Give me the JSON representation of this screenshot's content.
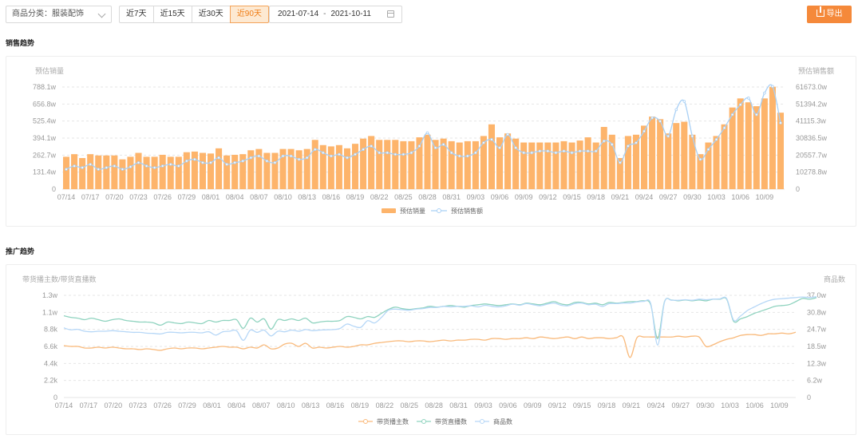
{
  "toolbar": {
    "category_select": "商品分类：服装配饰",
    "ranges": [
      {
        "label": "近7天",
        "active": false
      },
      {
        "label": "近15天",
        "active": false
      },
      {
        "label": "近30天",
        "active": false
      },
      {
        "label": "近90天",
        "active": true
      }
    ],
    "date_start": "2021-07-14",
    "date_sep": "-",
    "date_end": "2021-10-11",
    "export_label": "导出"
  },
  "sales_section": {
    "title": "销售趋势"
  },
  "promo_section": {
    "title": "推广趋势"
  },
  "colors": {
    "accent": "#f5893a",
    "bar": "#fdb46b",
    "sales_line": "#a9d0f5",
    "anchor_line": "#f9b97a",
    "live_line": "#8fd3bf",
    "product_line": "#b6d7f7",
    "grid": "#e6e6e6",
    "axis_text": "#999999"
  },
  "chart_data": [
    {
      "type": "bar",
      "title": "",
      "ylabel": "预估销量",
      "y2label": "预估销售额",
      "ylim": [
        0,
        788.1
      ],
      "y_ticks": [
        "0",
        "131.4w",
        "262.7w",
        "394.1w",
        "525.4w",
        "656.8w",
        "788.1w"
      ],
      "y2lim": [
        0,
        61673
      ],
      "y2_ticks": [
        "0",
        "10278.8w",
        "20557.7w",
        "30836.5w",
        "41115.3w",
        "51394.2w",
        "61673.0w"
      ],
      "x_tick_labels": [
        "07/14",
        "07/17",
        "07/20",
        "07/23",
        "07/26",
        "07/29",
        "08/01",
        "08/04",
        "08/07",
        "08/10",
        "08/13",
        "08/16",
        "08/19",
        "08/22",
        "08/25",
        "08/28",
        "08/31",
        "09/03",
        "09/06",
        "09/09",
        "09/12",
        "09/15",
        "09/18",
        "09/21",
        "09/24",
        "09/27",
        "09/30",
        "10/03",
        "10/06",
        "10/09"
      ],
      "legend_position": "bottom",
      "grid": true,
      "series": [
        {
          "name": "预估销量",
          "type": "bar",
          "axis": "left",
          "values": [
            250,
            270,
            240,
            270,
            260,
            260,
            260,
            230,
            250,
            280,
            250,
            250,
            265,
            250,
            250,
            285,
            290,
            280,
            275,
            315,
            260,
            265,
            270,
            300,
            310,
            280,
            280,
            310,
            310,
            300,
            310,
            380,
            340,
            330,
            340,
            315,
            350,
            390,
            410,
            380,
            380,
            380,
            370,
            370,
            400,
            420,
            380,
            390,
            370,
            360,
            370,
            370,
            410,
            500,
            400,
            430,
            390,
            360,
            360,
            360,
            360,
            360,
            370,
            360,
            375,
            400,
            360,
            480,
            420,
            240,
            410,
            420,
            490,
            560,
            540,
            430,
            510,
            520,
            420,
            270,
            360,
            410,
            500,
            630,
            700,
            670,
            640,
            700,
            790,
            590
          ]
        },
        {
          "name": "预估销售额",
          "type": "line",
          "axis": "right",
          "values": [
            12000,
            14000,
            13000,
            15000,
            12000,
            13000,
            14000,
            12000,
            13500,
            16000,
            14000,
            13000,
            14000,
            15000,
            14000,
            17000,
            18000,
            16000,
            16000,
            19000,
            15000,
            16000,
            17000,
            19000,
            20000,
            17000,
            16000,
            20000,
            20000,
            18000,
            19000,
            24000,
            22000,
            20000,
            21000,
            19000,
            21000,
            24000,
            26000,
            22000,
            22000,
            21000,
            21000,
            22000,
            26000,
            34000,
            25000,
            27000,
            22000,
            20000,
            20000,
            22000,
            28000,
            30000,
            25000,
            33000,
            25000,
            22000,
            22000,
            23000,
            23000,
            22000,
            23000,
            22000,
            23000,
            23000,
            23000,
            29000,
            27000,
            16000,
            26000,
            28000,
            35000,
            43000,
            41000,
            32000,
            48000,
            53000,
            32000,
            18000,
            24000,
            30000,
            37000,
            45000,
            51000,
            55000,
            45000,
            58000,
            62000,
            40000
          ]
        }
      ]
    },
    {
      "type": "line",
      "title": "",
      "ylabel": "带货播主数/带货直播数",
      "y2label": "商品数",
      "ylim": [
        0,
        13000
      ],
      "y_ticks": [
        "0",
        "2.2k",
        "4.4k",
        "6.6k",
        "8.8k",
        "1.1w",
        "1.3w"
      ],
      "y2lim": [
        0,
        370000
      ],
      "y2_ticks": [
        "0",
        "6.2w",
        "12.3w",
        "18.5w",
        "24.7w",
        "30.8w",
        "37.0w"
      ],
      "x_tick_labels": [
        "07/14",
        "07/17",
        "07/20",
        "07/23",
        "07/26",
        "07/29",
        "08/01",
        "08/04",
        "08/07",
        "08/10",
        "08/13",
        "08/16",
        "08/19",
        "08/22",
        "08/25",
        "08/28",
        "08/31",
        "09/03",
        "09/06",
        "09/09",
        "09/12",
        "09/15",
        "09/18",
        "09/21",
        "09/24",
        "09/27",
        "09/30",
        "10/03",
        "10/06",
        "10/09"
      ],
      "legend_position": "bottom",
      "grid": true,
      "series": [
        {
          "name": "带货播主数",
          "axis": "left",
          "values": [
            6600,
            6500,
            6500,
            6300,
            6300,
            6400,
            6300,
            6400,
            6300,
            6200,
            6200,
            6100,
            6200,
            6100,
            6000,
            6200,
            6300,
            6200,
            6300,
            6300,
            6200,
            6300,
            6400,
            6500,
            6400,
            6400,
            6200,
            6400,
            6300,
            6700,
            6200,
            6300,
            6800,
            6900,
            6500,
            6900,
            6300,
            6400,
            6300,
            6400,
            6500,
            6400,
            6500,
            6700,
            6700,
            6900,
            7000,
            7100,
            7200,
            7200,
            7100,
            7200,
            7200,
            7100,
            7200,
            7300,
            7200,
            7300,
            7300,
            7400,
            7400,
            7300,
            7500,
            7500,
            7400,
            7500,
            7500,
            7600,
            7500,
            7700,
            7600,
            7500,
            7600,
            7700,
            7500,
            7700,
            7500,
            7600,
            7600,
            7500,
            7600,
            7700,
            5100,
            7600,
            7700,
            7700,
            7700,
            7700,
            7700,
            7800,
            7700,
            7800,
            7700,
            6500,
            6700,
            7100,
            7400,
            7600,
            7900,
            8000,
            8000,
            7900,
            8100,
            8100,
            8200,
            8100,
            8300
          ]
        },
        {
          "name": "带货直播数",
          "axis": "left",
          "values": [
            10400,
            10200,
            10100,
            9900,
            10100,
            9900,
            9700,
            9900,
            10000,
            9800,
            9700,
            9600,
            9600,
            9500,
            9200,
            9600,
            9500,
            9400,
            9600,
            9500,
            9400,
            9800,
            9600,
            9800,
            9800,
            9900,
            8800,
            10100,
            9600,
            10000,
            8700,
            9900,
            9800,
            10000,
            9800,
            10100,
            9500,
            9600,
            9700,
            9700,
            9800,
            10300,
            10200,
            10000,
            10300,
            10200,
            10700,
            11200,
            11500,
            11300,
            11200,
            11300,
            11400,
            11600,
            11500,
            11600,
            11700,
            11600,
            11500,
            11700,
            11800,
            11900,
            11800,
            11700,
            11800,
            11900,
            11800,
            12000,
            11900,
            11800,
            12000,
            12200,
            11900,
            11800,
            12100,
            12100,
            11900,
            12000,
            11800,
            12100,
            12000,
            12100,
            12200,
            12200,
            12300,
            11800,
            7500,
            12200,
            12400,
            12300,
            12400,
            12300,
            12400,
            12300,
            12500,
            12500,
            12500,
            9700,
            10000,
            10300,
            10700,
            11000,
            11300,
            11600,
            11700,
            11800,
            12200,
            12600,
            12500,
            12700
          ]
        },
        {
          "name": "商品数",
          "axis": "right",
          "values": [
            252000,
            245000,
            247000,
            240000,
            238000,
            240000,
            240000,
            242000,
            240000,
            238000,
            236000,
            236000,
            233000,
            232000,
            230000,
            236000,
            236000,
            234000,
            236000,
            236000,
            234000,
            238000,
            226000,
            238000,
            240000,
            242000,
            207000,
            244000,
            236000,
            244000,
            223000,
            240000,
            238000,
            244000,
            240000,
            246000,
            242000,
            244000,
            245000,
            246000,
            250000,
            266000,
            258000,
            254000,
            278000,
            270000,
            290000,
            316000,
            320000,
            318000,
            316000,
            320000,
            322000,
            326000,
            326000,
            330000,
            328000,
            330000,
            330000,
            332000,
            328000,
            334000,
            330000,
            328000,
            332000,
            338000,
            334000,
            340000,
            336000,
            332000,
            338000,
            342000,
            334000,
            332000,
            340000,
            342000,
            336000,
            338000,
            330000,
            340000,
            340000,
            342000,
            342000,
            346000,
            348000,
            340000,
            190000,
            346000,
            352000,
            352000,
            354000,
            352000,
            356000,
            354000,
            356000,
            357000,
            358000,
            280000,
            295000,
            315000,
            328000,
            340000,
            350000,
            356000,
            358000,
            360000,
            362000,
            364000,
            362000,
            365000
          ]
        }
      ]
    }
  ]
}
